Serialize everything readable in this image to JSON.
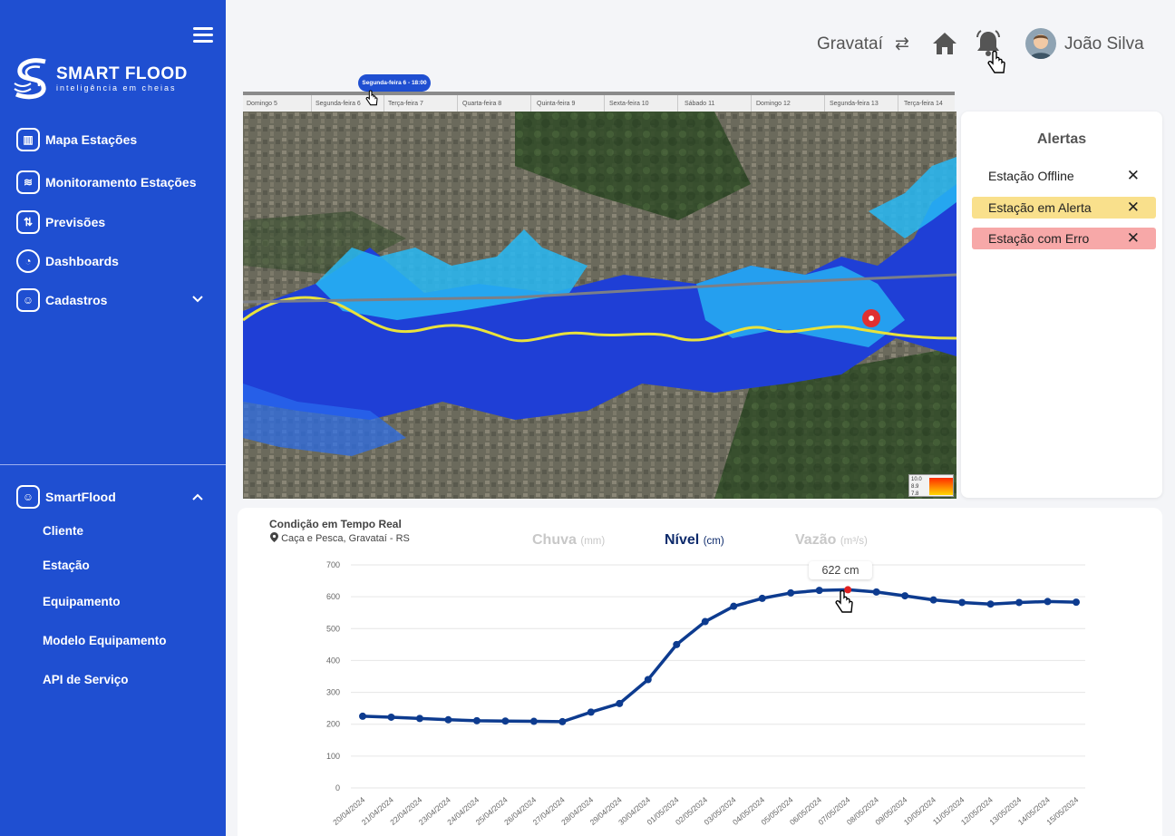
{
  "brand": {
    "title": "SMART FLOOD",
    "subtitle": "inteligência em cheias"
  },
  "nav": [
    {
      "label": "Mapa Estações",
      "icon": "map-icon"
    },
    {
      "label": "Monitoramento Estações",
      "icon": "wifi-icon"
    },
    {
      "label": "Previsões",
      "icon": "forecast-icon"
    },
    {
      "label": "Dashboards",
      "icon": "pie-chart-icon"
    },
    {
      "label": "Cadastros",
      "icon": "user-icon"
    }
  ],
  "smartflood_section": {
    "label": "SmartFlood",
    "items": [
      "Cliente",
      "Estação",
      "Equipamento",
      "Modelo Equipamento",
      "API de Serviço"
    ]
  },
  "topbar": {
    "city": "Gravataí",
    "user_name": "João Silva"
  },
  "timeline": {
    "selected_label": "Segunda-feira 6 - 18:00",
    "days": [
      "Domingo 5",
      "Segunda-feira 6",
      "Terça-feira 7",
      "Quarta-feira 8",
      "Quinta-feira 9",
      "Sexta-feira 10",
      "Sábado 11",
      "Domingo 12",
      "Segunda-feira 13",
      "Terça-feira 14"
    ]
  },
  "map_legend": {
    "values": [
      "10.0",
      "8.9",
      "7.8"
    ]
  },
  "alerts": {
    "title": "Alertas",
    "items": [
      {
        "label": "Estação Offline",
        "color": "#ffffff"
      },
      {
        "label": "Estação em Alerta",
        "color": "#f9e08c"
      },
      {
        "label": "Estação com Erro",
        "color": "#f7a8a8"
      }
    ]
  },
  "chart_card": {
    "title": "Condição em Tempo Real",
    "location": "Caça e Pesca, Gravataí - RS",
    "tabs": [
      {
        "label": "Chuva",
        "unit": "(mm)",
        "active": false
      },
      {
        "label": "Nível",
        "unit": "(cm)",
        "active": true
      },
      {
        "label": "Vazão",
        "unit": "(m³/s)",
        "active": false
      }
    ],
    "tooltip": "622 cm"
  },
  "chart_data": {
    "type": "line",
    "x": [
      "20/04/2024",
      "21/04/2024",
      "22/04/2024",
      "23/04/2024",
      "24/04/2024",
      "25/04/2024",
      "26/04/2024",
      "27/04/2024",
      "28/04/2024",
      "29/04/2024",
      "30/04/2024",
      "01/05/2024",
      "02/05/2024",
      "03/05/2024",
      "04/05/2024",
      "05/05/2024",
      "06/05/2024",
      "07/05/2024",
      "08/05/2024",
      "09/05/2024",
      "10/05/2024",
      "11/05/2024",
      "12/05/2024",
      "13/05/2024",
      "14/05/2024",
      "15/05/2024"
    ],
    "series": [
      {
        "values": [
          225,
          222,
          218,
          214,
          211,
          210,
          209,
          208,
          238,
          265,
          340,
          450,
          522,
          570,
          595,
          612,
          620,
          622,
          615,
          603,
          590,
          582,
          577,
          582,
          585,
          583
        ]
      }
    ],
    "highlight_index": 17,
    "ylim": [
      0,
      700
    ],
    "yticks": [
      0,
      100,
      200,
      300,
      400,
      500,
      600,
      700
    ],
    "grid": true,
    "colors": {
      "line": "#0d3b8f",
      "highlight": "#e02020",
      "grid": "#e6e6e6"
    }
  }
}
